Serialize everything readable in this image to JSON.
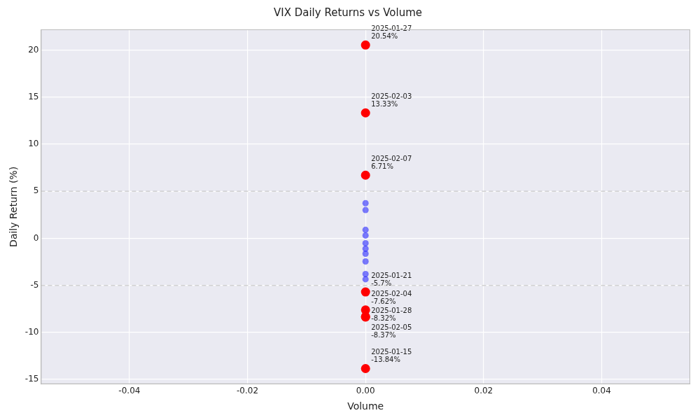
{
  "chart_data": {
    "type": "scatter",
    "title": "VIX Daily Returns vs Volume",
    "x_label": "Volume",
    "y_label": "Daily Return (%)",
    "series": [
      {
        "color": "blue",
        "x": [
          0,
          0,
          0,
          0,
          0,
          0,
          0,
          0,
          0,
          0
        ],
        "values": [
          3.73,
          3.0,
          0.9,
          0.3,
          -0.52,
          -1.1,
          -1.64,
          -2.46,
          -3.8,
          -4.35
        ]
      },
      {
        "color": "red",
        "x": [
          0,
          0,
          0,
          0,
          0,
          0,
          0,
          0
        ],
        "values": [
          20.54,
          13.33,
          6.71,
          -5.7,
          -7.62,
          -8.32,
          -8.37,
          -13.84
        ],
        "labels": [
          "2025-01-27",
          "2025-02-03",
          "2025-02-07",
          "2025-01-21",
          "2025-02-04",
          "2025-01-28",
          "2025-02-05",
          "2025-01-15"
        ],
        "value_labels": [
          "20.54%",
          "13.33%",
          "6.71%",
          "-5.7%",
          "-7.62%",
          "-8.32%",
          "-8.37%",
          "-13.84%"
        ]
      }
    ],
    "reference_lines": [
      5,
      -5
    ],
    "xlim": [
      -0.055,
      0.055
    ],
    "xticks": [
      -0.04,
      -0.02,
      {
        "value": 0,
        "label": "0.00"
      },
      0.02,
      0.04
    ],
    "ylim": [
      -15.5,
      22.2
    ],
    "yticks": [
      -15,
      -10,
      -5,
      0,
      5,
      10,
      15,
      20
    ],
    "grid": true
  }
}
